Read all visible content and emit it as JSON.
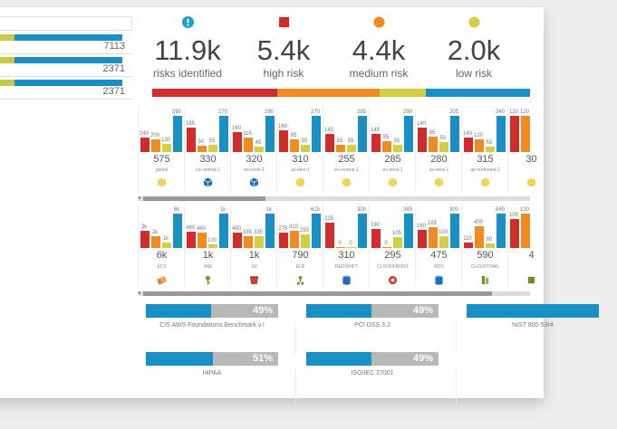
{
  "left_summary": {
    "rows": [
      {
        "value": "7113"
      },
      {
        "value": "2371"
      },
      {
        "value": "2371"
      }
    ]
  },
  "kpis": [
    {
      "value": "11.9k",
      "label": "risks identified",
      "icon": "alert-circle-icon",
      "color": "#1aa0c8"
    },
    {
      "value": "5.4k",
      "label": "high risk",
      "icon": "square-icon",
      "color": "#d12b2b"
    },
    {
      "value": "4.4k",
      "label": "medium risk",
      "icon": "circle-icon",
      "color": "#ef8b22"
    },
    {
      "value": "2.0k",
      "label": "low risk",
      "icon": "circle-icon",
      "color": "#d3cf45"
    }
  ],
  "risk_split": {
    "high": 5.4,
    "medium": 4.4,
    "low": 2.0,
    "rest": 4.5
  },
  "colors": {
    "high": "#d12b2b",
    "medium": "#ef8b22",
    "low": "#d3cf45",
    "info": "#1a8fc4"
  },
  "regions": [
    {
      "values": [
        240,
        200,
        130,
        590
      ],
      "labels": [
        "240",
        "200",
        "130",
        "590"
      ],
      "count": "575",
      "name": "global",
      "icon": "hexagon-icon",
      "icon_color": "#f2d35b"
    },
    {
      "values": [
        185,
        50,
        55,
        270
      ],
      "labels": [
        "185",
        "50",
        "55",
        "270"
      ],
      "count": "330",
      "name": "ca-central-1",
      "icon": "cube-icon",
      "icon_color": "#1e6fbf"
    },
    {
      "values": [
        160,
        115,
        45,
        290
      ],
      "labels": [
        "160",
        "115",
        "45",
        "290"
      ],
      "count": "320",
      "name": "eu-north-1",
      "icon": "cube-icon",
      "icon_color": "#1e6fbf"
    },
    {
      "values": [
        160,
        95,
        55,
        270
      ],
      "labels": [
        "160",
        "95",
        "55",
        "270"
      ],
      "count": "310",
      "name": "us-east-1",
      "icon": "hexagon-icon",
      "icon_color": "#f2d35b"
    },
    {
      "values": [
        145,
        55,
        55,
        285
      ],
      "labels": [
        "145",
        "55",
        "55",
        "285"
      ],
      "count": "255",
      "name": "eu-central-1",
      "icon": "hexagon-icon",
      "icon_color": "#f2d35b"
    },
    {
      "values": [
        145,
        85,
        55,
        290
      ],
      "labels": [
        "145",
        "85",
        "55",
        "290"
      ],
      "count": "285",
      "name": "eu-west-1",
      "icon": "hexagon-icon",
      "icon_color": "#f2d35b"
    },
    {
      "values": [
        140,
        85,
        55,
        205
      ],
      "labels": [
        "140",
        "85",
        "55",
        "205"
      ],
      "count": "280",
      "name": "us-west-1",
      "icon": "hexagon-icon",
      "icon_color": "#f2d35b"
    },
    {
      "values": [
        140,
        120,
        55,
        340
      ],
      "labels": [
        "140",
        "120",
        "55",
        "340"
      ],
      "count": "315",
      "name": "ap-northeast-2",
      "icon": "hexagon-icon",
      "icon_color": "#f2d35b"
    },
    {
      "values": [
        120,
        120,
        0,
        0
      ],
      "labels": [
        "120",
        "120",
        "",
        ""
      ],
      "count": "30",
      "name": "",
      "icon": "hexagon-icon",
      "icon_color": "#f2d35b"
    }
  ],
  "services": [
    {
      "values": [
        3000,
        2000,
        1000,
        6000
      ],
      "labels": [
        "3k",
        "2k",
        "1k",
        "6k"
      ],
      "count": "6k",
      "name": "EC2",
      "icon": "ec2-icon",
      "icon_color": "#e8842b"
    },
    {
      "values": [
        480,
        460,
        100,
        1000
      ],
      "labels": [
        "480",
        "460",
        "100",
        "1k"
      ],
      "count": "1k",
      "name": "IAM",
      "icon": "key-icon",
      "icon_color": "#7a9a2a"
    },
    {
      "values": [
        460,
        335,
        335,
        1000
      ],
      "labels": [
        "460",
        "335",
        "335",
        "1k"
      ],
      "count": "1k",
      "name": "S3",
      "icon": "bucket-icon",
      "icon_color": "#c9432d"
    },
    {
      "values": [
        275,
        310,
        250,
        615
      ],
      "labels": [
        "275",
        "310",
        "250",
        "615"
      ],
      "count": "790",
      "name": "ELB",
      "icon": "elb-icon",
      "icon_color": "#6d8f2b"
    },
    {
      "values": [
        225,
        0,
        0,
        300
      ],
      "labels": [
        "225",
        "0",
        "0",
        "300"
      ],
      "count": "310",
      "name": "REDSHIFT",
      "icon": "redshift-icon",
      "icon_color": "#1e6fbf"
    },
    {
      "values": [
        190,
        0,
        105,
        345
      ],
      "labels": [
        "190",
        "0",
        "105",
        "345"
      ],
      "count": "295",
      "name": "CLOUDFRONT",
      "icon": "cloudfront-icon",
      "icon_color": "#c9432d"
    },
    {
      "values": [
        160,
        185,
        100,
        300
      ],
      "labels": [
        "160",
        "185",
        "100",
        "300"
      ],
      "count": "475",
      "name": "RDS",
      "icon": "rds-icon",
      "icon_color": "#1e6fbf"
    },
    {
      "values": [
        110,
        400,
        80,
        645
      ],
      "labels": [
        "110",
        "400",
        "80",
        "645"
      ],
      "count": "590",
      "name": "CLOUDTRAIL",
      "icon": "cloudtrail-icon",
      "icon_color": "#6d8f2b"
    },
    {
      "values": [
        100,
        120,
        0,
        0
      ],
      "labels": [
        "100",
        "120",
        "",
        ""
      ],
      "count": "4",
      "name": "",
      "icon": "misc-icon",
      "icon_color": "#6d8f2b"
    }
  ],
  "compliance": [
    {
      "name": "CIS AWS Foundations Benchmark v.I",
      "percent_label": "49%",
      "fraction": 0.49
    },
    {
      "name": "PCI DSS 3.2",
      "percent_label": "49%",
      "fraction": 0.49
    },
    {
      "name": "NIST 800-53r4",
      "percent_label": "",
      "fraction": 1.0
    },
    {
      "name": "HIPAA",
      "percent_label": "51%",
      "fraction": 0.51
    },
    {
      "name": "ISO/IEC 27001",
      "percent_label": "49%",
      "fraction": 0.49
    }
  ]
}
